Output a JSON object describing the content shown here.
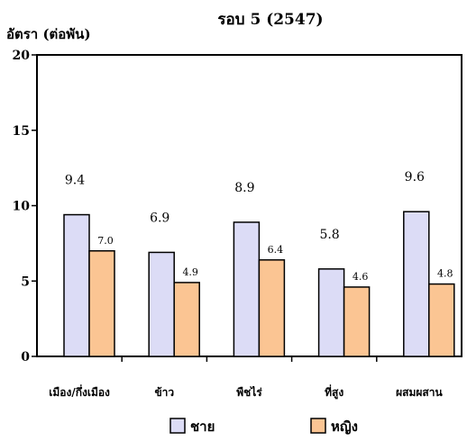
{
  "chart_data": {
    "type": "bar",
    "title": "รอบ 5 (2547)",
    "ylabel": "อัตรา (ต่อพัน)",
    "xlabel": "",
    "categories": [
      "เมือง/กึ่งเมือง",
      "ข้าว",
      "พืชไร่",
      "ที่สูง",
      "ผสมผสาน"
    ],
    "series": [
      {
        "name": "ชาย",
        "values": [
          9.4,
          6.9,
          8.9,
          5.8,
          9.6
        ],
        "labels": [
          "9.4",
          "6.9",
          "8.9",
          "5.8",
          "9.6"
        ],
        "color": "#dcdcf6",
        "edge": "#000000"
      },
      {
        "name": "หญิง",
        "values": [
          7.0,
          4.9,
          6.4,
          4.6,
          4.8
        ],
        "labels": [
          "7.0",
          "4.9",
          "6.4",
          "4.6",
          "4.8"
        ],
        "color": "#fbc593",
        "edge": "#000000"
      }
    ],
    "ylim": [
      0,
      20
    ],
    "yticks": [
      "0",
      "5",
      "10",
      "15",
      "20"
    ],
    "grid": false,
    "legend": "bottom"
  }
}
